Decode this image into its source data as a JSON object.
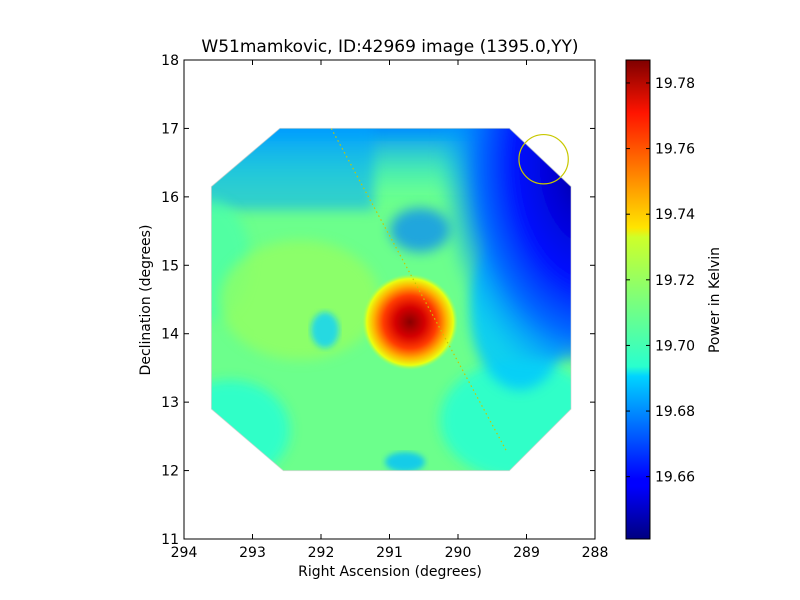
{
  "chart_data": {
    "type": "heatmap",
    "title": "W51mamkovic, ID:42969 image (1395.0,YY)",
    "xlabel": "Right Ascension (degrees)",
    "ylabel": "Declination (degrees)",
    "xlim": [
      294,
      288
    ],
    "ylim": [
      11,
      18
    ],
    "x_ticks": [
      294,
      293,
      292,
      291,
      290,
      289,
      288
    ],
    "y_ticks": [
      11,
      12,
      13,
      14,
      15,
      16,
      17,
      18
    ],
    "colorbar": {
      "label": "Power in Kelvin",
      "range": [
        19.641,
        19.787
      ],
      "ticks": [
        "19.66",
        "19.68",
        "19.70",
        "19.72",
        "19.74",
        "19.76",
        "19.78"
      ],
      "colormap": "jet"
    },
    "footprint_octagon": [
      [
        293.6,
        12.9
      ],
      [
        293.6,
        16.15
      ],
      [
        292.6,
        17.0
      ],
      [
        289.25,
        17.0
      ],
      [
        288.35,
        16.15
      ],
      [
        288.35,
        12.9
      ],
      [
        289.25,
        12.0
      ],
      [
        292.55,
        12.0
      ]
    ],
    "features": [
      {
        "name": "peak",
        "ra": 290.7,
        "dec": 14.25,
        "value": 19.787
      },
      {
        "name": "background-plateau",
        "value": 19.71
      },
      {
        "name": "cold-corner",
        "ra": 288.5,
        "dec": 16.5,
        "value": 19.645
      }
    ],
    "beam_circle": {
      "ra": 288.75,
      "dec": 16.55,
      "radius_deg": 0.36,
      "color": "#c8c800"
    },
    "dotted_line": {
      "from": [
        291.85,
        17.0
      ],
      "to": [
        289.3,
        12.3
      ],
      "color": "#c8c800"
    }
  }
}
